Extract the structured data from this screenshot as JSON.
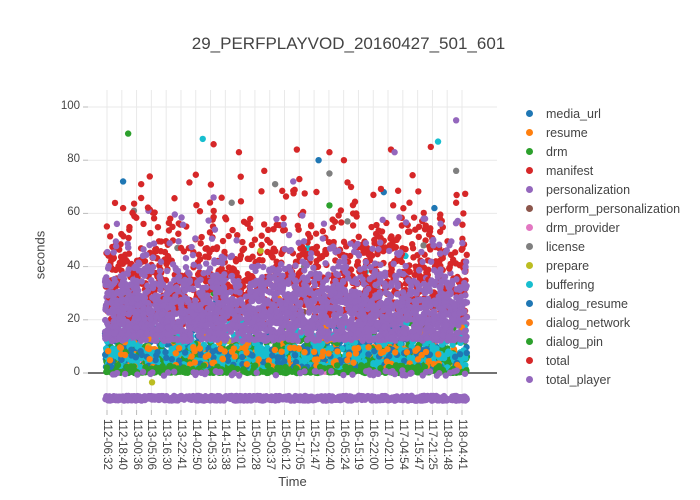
{
  "chart_data": {
    "type": "scatter",
    "title": "29_PERFPLAYVOD_20160427_501_601",
    "xlabel": "Time",
    "ylabel": "seconds",
    "y_ticks": [
      0,
      20,
      40,
      60,
      80,
      100
    ],
    "ylim": [
      -14,
      106
    ],
    "grid": true,
    "legend_position": "right",
    "marker_style": "filled-circle",
    "x_tick_labels": [
      "112-06:32",
      "112-18:40",
      "113-00:36",
      "113-05:06",
      "113-16:30",
      "113-22:41",
      "114-02:50",
      "114-05:33",
      "114-15:38",
      "114-21:01",
      "115-00:28",
      "115-03:37",
      "115-06:12",
      "115-17:05",
      "115-21:47",
      "116-02:40",
      "116-05:24",
      "116-15:19",
      "116-22:00",
      "117-02:10",
      "117-04:54",
      "117-15:47",
      "117-21:25",
      "118-01:48",
      "118-04:41"
    ],
    "series": [
      {
        "name": "media_url",
        "color": "#1f77b4",
        "bands": [
          {
            "y": [
              2,
              7
            ],
            "count": 480
          },
          {
            "y": [
              7,
              12
            ],
            "count": 260
          },
          {
            "y": [
              12,
              18
            ],
            "count": 70
          },
          {
            "y": [
              18,
              30
            ],
            "count": 14
          }
        ],
        "outliers": [
          [
            0.05,
            72
          ],
          [
            0.59,
            80
          ],
          [
            0.77,
            68
          ],
          [
            0.91,
            62
          ]
        ]
      },
      {
        "name": "resume",
        "color": "#ff7f0e",
        "bands": [
          {
            "y": [
              2,
              10
            ],
            "count": 200
          },
          {
            "y": [
              10,
              16
            ],
            "count": 45
          }
        ],
        "outliers": [
          [
            0.48,
            28
          ],
          [
            0.15,
            22
          ]
        ]
      },
      {
        "name": "drm",
        "color": "#2ca02c",
        "bands": [
          {
            "y": [
              0,
              2
            ],
            "count": 450
          },
          {
            "y": [
              2,
              8
            ],
            "count": 300
          },
          {
            "y": [
              8,
              15
            ],
            "count": 110
          },
          {
            "y": [
              15,
              22
            ],
            "count": 25
          }
        ],
        "outliers": [
          [
            0.064,
            90
          ],
          [
            0.62,
            63
          ],
          [
            0.3,
            30
          ],
          [
            0.55,
            30
          ]
        ]
      },
      {
        "name": "manifest",
        "color": "#d62728",
        "bands": [
          {
            "y": [
              18,
              28
            ],
            "count": 160
          },
          {
            "y": [
              28,
              38
            ],
            "count": 170
          },
          {
            "y": [
              38,
              48
            ],
            "count": 120
          },
          {
            "y": [
              48,
              58
            ],
            "count": 55
          },
          {
            "y": [
              58,
              68
            ],
            "count": 20
          }
        ],
        "outliers": [
          [
            0.3,
            86
          ],
          [
            0.44,
            76
          ],
          [
            0.05,
            62
          ],
          [
            0.53,
            84
          ]
        ]
      },
      {
        "name": "personalization",
        "color": "#9467bd",
        "bands": [
          {
            "y": [
              12,
              20
            ],
            "count": 300
          },
          {
            "y": [
              20,
              30
            ],
            "count": 250
          },
          {
            "y": [
              30,
              38
            ],
            "count": 80
          }
        ],
        "outliers": [
          [
            0.12,
            61
          ]
        ]
      },
      {
        "name": "perform_personalization",
        "color": "#8c564b",
        "bands": [
          {
            "y": [
              15,
              35
            ],
            "count": 8
          }
        ],
        "outliers": []
      },
      {
        "name": "drm_provider",
        "color": "#e377c2",
        "bands": [
          {
            "y": [
              0,
              6
            ],
            "count": 6
          }
        ],
        "outliers": []
      },
      {
        "name": "license",
        "color": "#7f7f7f",
        "bands": [],
        "outliers": [
          [
            0.08,
            61
          ],
          [
            0.62,
            75
          ],
          [
            0.47,
            71
          ],
          [
            0.97,
            76
          ],
          [
            0.2,
            47
          ],
          [
            0.55,
            40
          ],
          [
            0.75,
            33
          ],
          [
            0.88,
            48
          ],
          [
            0.93,
            30
          ],
          [
            0.13,
            38
          ],
          [
            0.67,
            57
          ],
          [
            0.35,
            64
          ]
        ]
      },
      {
        "name": "prepare",
        "color": "#bcbd22",
        "bands": [
          {
            "y": [
              0,
              8
            ],
            "count": 6
          }
        ],
        "outliers": [
          [
            0.13,
            -3.5
          ],
          [
            0.43,
            46
          ],
          [
            0.12,
            10
          ],
          [
            0.34,
            12
          ]
        ]
      },
      {
        "name": "buffering",
        "color": "#17becf",
        "bands": [
          {
            "y": [
              2,
              8
            ],
            "count": 380
          },
          {
            "y": [
              8,
              14
            ],
            "count": 110
          },
          {
            "y": [
              14,
              20
            ],
            "count": 20
          }
        ],
        "outliers": [
          [
            0.27,
            88
          ],
          [
            0.92,
            87
          ],
          [
            0.56,
            47
          ],
          [
            0.83,
            44
          ],
          [
            0.72,
            38
          ]
        ]
      },
      {
        "name": "dialog_resume",
        "color": "#1f77b4",
        "bands": [
          {
            "y": [
              2,
              9
            ],
            "count": 120
          }
        ],
        "outliers": []
      },
      {
        "name": "dialog_network",
        "color": "#ff7f0e",
        "bands": [
          {
            "y": [
              2,
              10
            ],
            "count": 90
          },
          {
            "y": [
              10,
              18
            ],
            "count": 20
          }
        ],
        "outliers": []
      },
      {
        "name": "dialog_pin",
        "color": "#2ca02c",
        "bands": [
          {
            "y": [
              0,
              3
            ],
            "count": 120
          }
        ],
        "outliers": []
      },
      {
        "name": "total",
        "color": "#d62728",
        "bands": [
          {
            "y": [
              20,
              30
            ],
            "count": 180
          },
          {
            "y": [
              30,
              40
            ],
            "count": 200
          },
          {
            "y": [
              40,
              50
            ],
            "count": 130
          },
          {
            "y": [
              50,
              60
            ],
            "count": 60
          },
          {
            "y": [
              60,
              70
            ],
            "count": 22
          },
          {
            "y": [
              70,
              78
            ],
            "count": 8
          }
        ],
        "outliers": [
          [
            0.62,
            83
          ],
          [
            0.66,
            80
          ],
          [
            0.79,
            84
          ],
          [
            0.9,
            85
          ],
          [
            0.97,
            64
          ],
          [
            0.99,
            60
          ],
          [
            0.1,
            71
          ],
          [
            0.37,
            83
          ]
        ]
      },
      {
        "name": "total_player",
        "color": "#9467bd",
        "bands": [
          {
            "y": [
              -10.4,
              -8.6
            ],
            "count": 800
          },
          {
            "y": [
              -1,
              1
            ],
            "count": 60
          },
          {
            "y": [
              12,
              20
            ],
            "count": 650
          },
          {
            "y": [
              20,
              28
            ],
            "count": 550
          },
          {
            "y": [
              28,
              35
            ],
            "count": 330
          },
          {
            "y": [
              35,
              42
            ],
            "count": 150
          },
          {
            "y": [
              42,
              50
            ],
            "count": 60
          },
          {
            "y": [
              50,
              60
            ],
            "count": 22
          }
        ],
        "outliers": [
          [
            0.97,
            95
          ],
          [
            0.8,
            83
          ],
          [
            0.52,
            72
          ],
          [
            0.3,
            66
          ],
          [
            0.88,
            58
          ]
        ]
      }
    ]
  }
}
